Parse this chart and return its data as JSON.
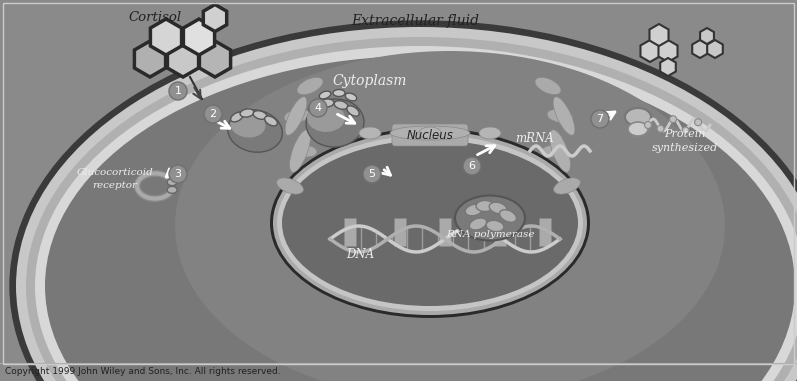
{
  "bg_extracellular": "#8a8a8a",
  "bg_cell_outer": "#909090",
  "bg_cell_membrane": "#c0c0c0",
  "bg_cell_membrane2": "#d0d0d0",
  "bg_cytoplasm": "#828282",
  "bg_nucleus_outer": "#686868",
  "bg_nucleus_inner": "#707070",
  "title_extracellular": "Extracellular fluid",
  "title_cytoplasm": "Cytoplasm",
  "title_nucleus": "Nucleus",
  "title_mrna": "mRNA",
  "title_dna": "DNA",
  "title_rna_pol": "RNA polymerase",
  "title_cortisol": "Cortisol",
  "title_glucocorticoid": "Glucocorticoid\nreceptor",
  "title_protein": "Protein\nsynthesized",
  "copyright": "Copyright 1999 John Wiley and Sons, Inc. All rights reserved.",
  "text_dark": "#222222",
  "text_light": "#eeeeee",
  "text_white": "#ffffff",
  "figsize": [
    7.97,
    3.81
  ],
  "dpi": 100
}
